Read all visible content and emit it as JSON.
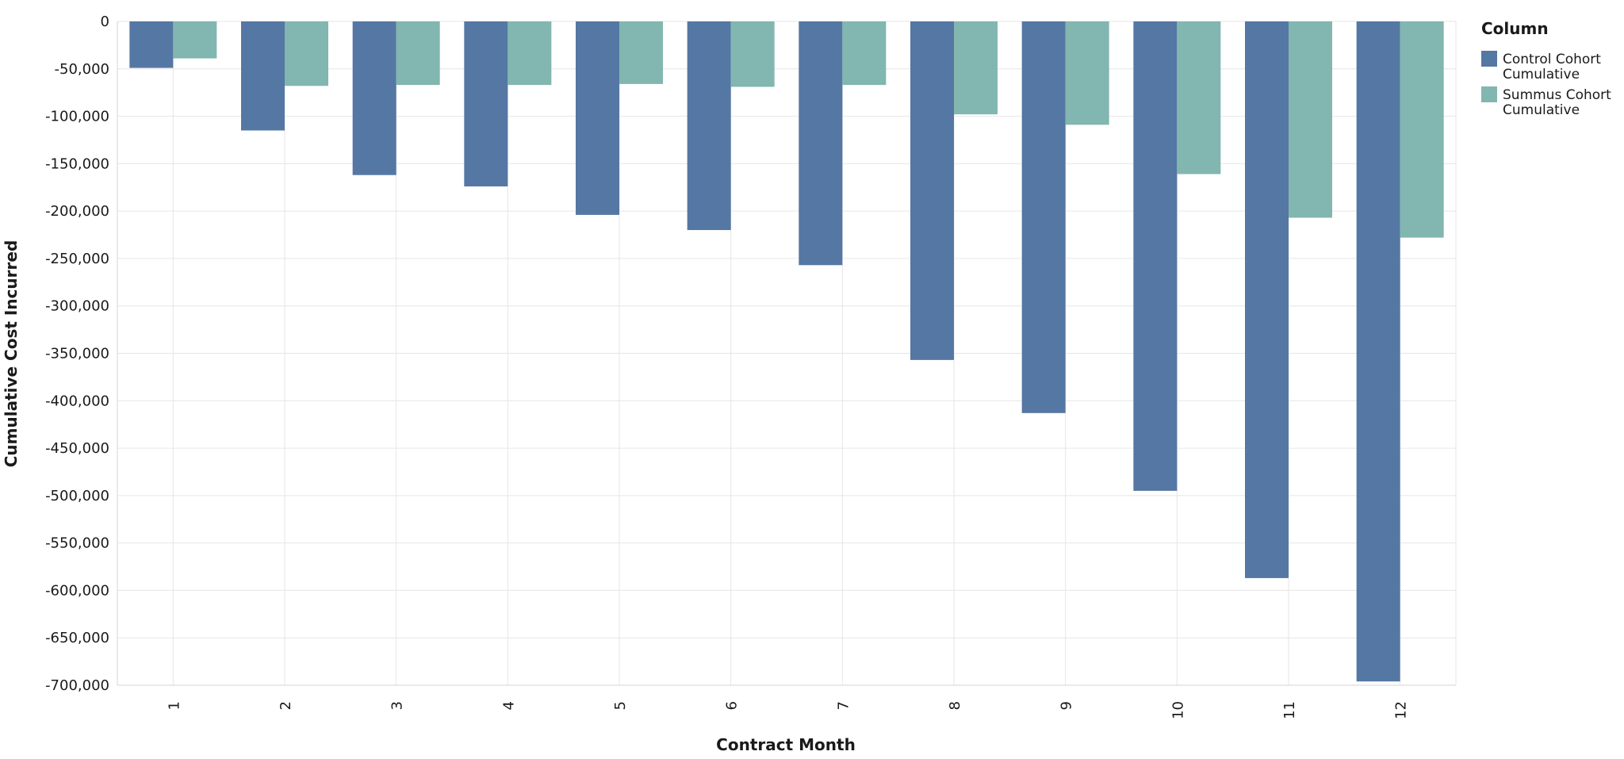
{
  "chart_data": {
    "type": "bar",
    "xlabel": "Contract Month",
    "ylabel": "Cumulative Cost Incurred",
    "categories": [
      "1",
      "2",
      "3",
      "4",
      "5",
      "6",
      "7",
      "8",
      "9",
      "10",
      "11",
      "12"
    ],
    "ylim": [
      -700000,
      0
    ],
    "yticks": [
      0,
      -50000,
      -100000,
      -150000,
      -200000,
      -250000,
      -300000,
      -350000,
      -400000,
      -450000,
      -500000,
      -550000,
      -600000,
      -650000,
      -700000
    ],
    "ytick_labels": [
      "0",
      "-50,000",
      "-100,000",
      "-150,000",
      "-200,000",
      "-250,000",
      "-300,000",
      "-350,000",
      "-400,000",
      "-450,000",
      "-500,000",
      "-550,000",
      "-600,000",
      "-650,000",
      "-700,000"
    ],
    "grid": true,
    "legend": {
      "title": "Column",
      "placement": "top-right"
    },
    "series": [
      {
        "name": "Control Cohort Cumulative",
        "name_lines": [
          "Control Cohort",
          "Cumulative"
        ],
        "color": "#5577a3",
        "values": [
          -49000,
          -115000,
          -162000,
          -174000,
          -204000,
          -220000,
          -257000,
          -357000,
          -413000,
          -495000,
          -587000,
          -696000
        ]
      },
      {
        "name": "Summus Cohort Cumulative",
        "name_lines": [
          "Summus Cohort",
          "Cumulative"
        ],
        "color": "#82b6b0",
        "values": [
          -39000,
          -68000,
          -67000,
          -67000,
          -66000,
          -69000,
          -67000,
          -98000,
          -109000,
          -161000,
          -207000,
          -228000
        ]
      }
    ]
  }
}
